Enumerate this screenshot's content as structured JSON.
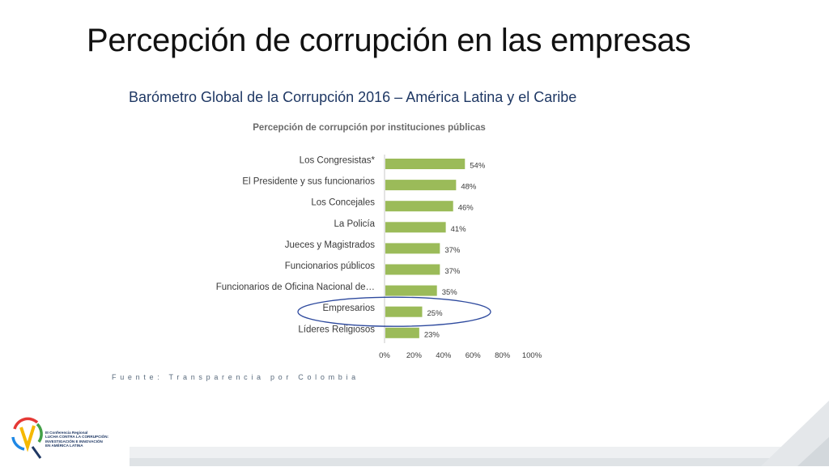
{
  "slide": {
    "title": "Percepción de corrupción en las empresas",
    "subtitle": "Barómetro Global de la Corrupción 2016 – América Latina y el Caribe",
    "source": "Fuente: Transparencia por Colombia",
    "logo_lines": [
      "III Conferencia Regional",
      "LUCHA CONTRA LA CORRUPCIÓN:",
      "INVESTIGACIÓN E INNOVACIÓN",
      "EN AMÉRICA LATINA"
    ]
  },
  "chart_data": {
    "type": "bar",
    "orientation": "horizontal",
    "title": "Percepción de corrupción por instituciones públicas",
    "categories": [
      "Los Congresistas*",
      "El Presidente y sus funcionarios",
      "Los Concejales",
      "La Policía",
      "Jueces y Magistrados",
      "Funcionarios públicos",
      "Funcionarios de Oficina Nacional de…",
      "Empresarios",
      "Líderes Religiosos"
    ],
    "values": [
      54,
      48,
      46,
      41,
      37,
      37,
      35,
      25,
      23
    ],
    "data_labels": [
      "54%",
      "48%",
      "46%",
      "41%",
      "37%",
      "37%",
      "35%",
      "25%",
      "23%"
    ],
    "xticks": [
      "0%",
      "20%",
      "40%",
      "60%",
      "80%",
      "100%"
    ],
    "xlim": [
      0,
      100
    ],
    "highlighted_category": "Empresarios",
    "bar_color": "#9bbb59",
    "highlight_color": "#2e4a9e"
  }
}
